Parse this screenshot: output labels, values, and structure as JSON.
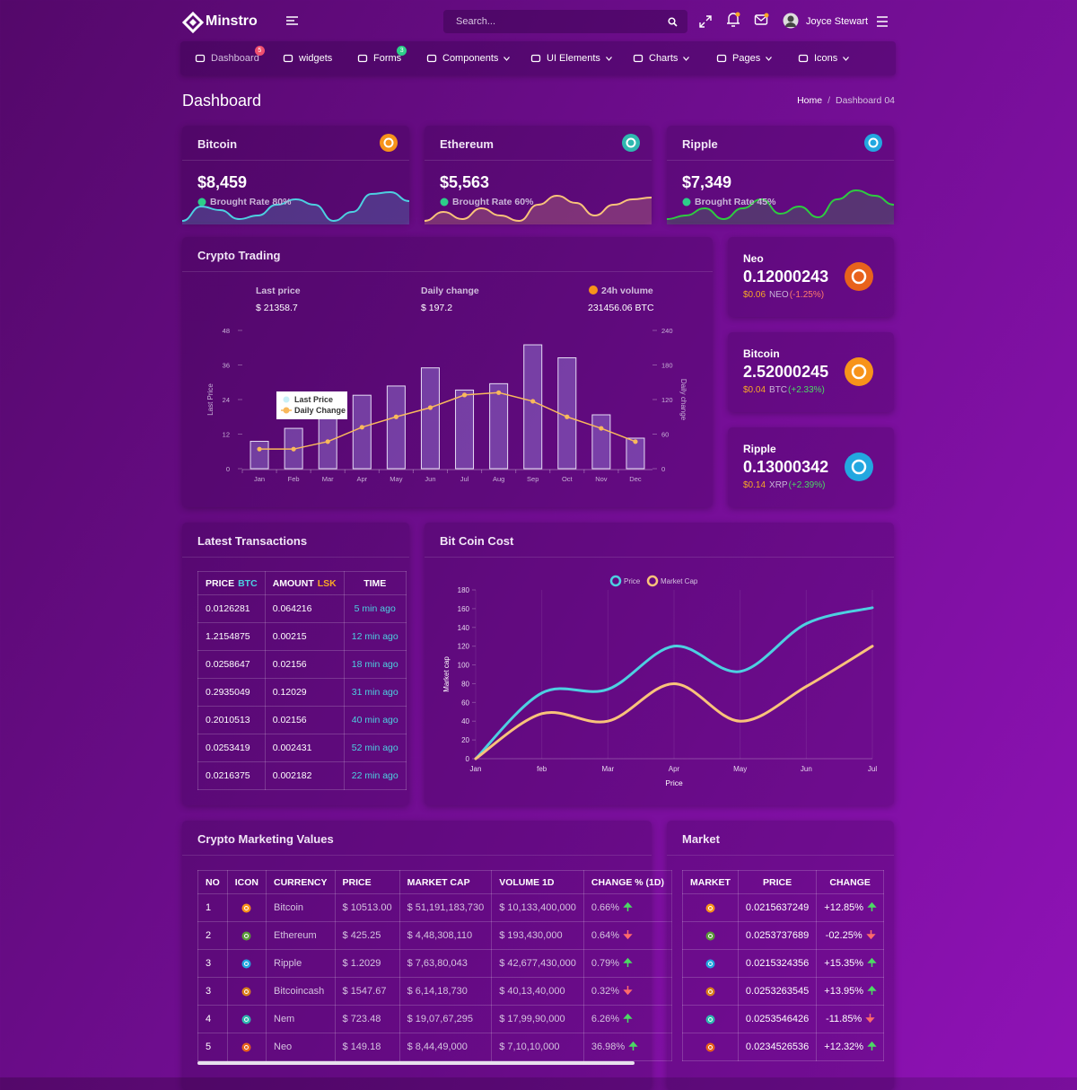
{
  "header": {
    "brand": "Minstro",
    "search_placeholder": "Search...",
    "user": "Joyce Stewart"
  },
  "nav": [
    {
      "label": "Dashboard",
      "badge": "5",
      "badge_color": "#f0506e"
    },
    {
      "label": "widgets"
    },
    {
      "label": "Forms",
      "badge": "3",
      "badge_color": "#2dce89"
    },
    {
      "label": "Components",
      "dropdown": true
    },
    {
      "label": "UI Elements",
      "dropdown": true
    },
    {
      "label": "Charts",
      "dropdown": true
    },
    {
      "label": "Pages",
      "dropdown": true
    },
    {
      "label": "Icons",
      "dropdown": true
    }
  ],
  "page_title": "Dashboard",
  "breadcrumb": [
    "Home",
    "Dashboard 04"
  ],
  "coin_cards": [
    {
      "name": "Bitcoin",
      "price": "$8,459",
      "rate": "Brought Rate 80%",
      "color": "#4dd0e1",
      "icon_color": "#f7931a"
    },
    {
      "name": "Ethereum",
      "price": "$5,563",
      "rate": "Brought Rate 60%",
      "color": "#f9c37a",
      "icon_color": "#2fb8b0"
    },
    {
      "name": "Ripple",
      "price": "$7,349",
      "rate": "Brought Rate 45%",
      "color": "#2ecc40",
      "icon_color": "#23a7e0"
    }
  ],
  "trading_stats": [
    {
      "label": "Last price",
      "value": "$ 21358.7"
    },
    {
      "label": "Daily change",
      "value": "$ 197.2"
    },
    {
      "label": "24h volume",
      "value": "231456.06 BTC"
    }
  ],
  "side_cards": [
    {
      "name": "Neo",
      "price": "0.12000243",
      "change": "$0.06",
      "symbol": "NEO",
      "pct": "(-1.25%)",
      "icon_color": "#e8621c"
    },
    {
      "name": "Bitcoin",
      "price": "2.52000245",
      "change": "$0.04",
      "symbol": "BTC",
      "pct": "(+2.33%)",
      "icon_color": "#f7931a"
    },
    {
      "name": "Ripple",
      "price": "0.13000342",
      "change": "$0.14",
      "symbol": "XRP",
      "pct": "(+2.39%)",
      "icon_color": "#23a7e0"
    }
  ],
  "chart_data": [
    {
      "type": "bar",
      "title": "Crypto Trading",
      "categories": [
        "Jan",
        "Feb",
        "Mar",
        "Apr",
        "May",
        "Jun",
        "Jul",
        "Aug",
        "Sep",
        "Oct",
        "Nov",
        "Dec"
      ],
      "series": [
        {
          "name": "Last Price",
          "color": "#9d8fe6",
          "values": [
            9.5,
            14,
            18,
            25.5,
            28.7,
            35,
            27.3,
            29.5,
            43,
            38.5,
            18.7,
            10.6
          ]
        },
        {
          "name": "Daily Change",
          "type": "line",
          "axis": "y2",
          "color": "#f9b95c",
          "values": [
            34,
            34,
            47,
            72,
            90,
            106,
            128,
            132,
            117,
            90,
            70,
            47
          ]
        }
      ],
      "ylim": [
        0,
        48
      ],
      "yticks": [
        0,
        12,
        24,
        36,
        48
      ],
      "ylabel": "Last Price",
      "y2lim": [
        0,
        240
      ],
      "y2ticks": [
        0,
        60,
        120,
        180,
        240
      ],
      "y2label": "Daily change"
    },
    {
      "type": "line",
      "title": "Bit Coin Cost",
      "categories": [
        "Jan",
        "feb",
        "Mar",
        "Apr",
        "May",
        "Jun",
        "Jul"
      ],
      "series": [
        {
          "name": "Price",
          "color": "#4dd0e1",
          "values": [
            0,
            70,
            74,
            120,
            93,
            144,
            161
          ]
        },
        {
          "name": "Market Cap",
          "color": "#f9c37a",
          "values": [
            0,
            48,
            40,
            80,
            40,
            77,
            120
          ]
        }
      ],
      "ylim": [
        0,
        180
      ],
      "yticks": [
        0,
        20,
        40,
        60,
        80,
        100,
        120,
        140,
        160,
        180
      ],
      "xlabel": "Price",
      "ylabel": "Market cap",
      "grid": true
    }
  ],
  "transactions": {
    "title": "Latest Transactions",
    "columns": [
      {
        "label": "PRICE",
        "unit": "BTC",
        "unit_color": "#4dd0e1"
      },
      {
        "label": "AMOUNT",
        "unit": "LSK",
        "unit_color": "#f9a825"
      },
      {
        "label": "TIME"
      }
    ],
    "rows": [
      [
        "0.0126281",
        "0.064216",
        "5 min ago"
      ],
      [
        "1.2154875",
        "0.00215",
        "12 min ago"
      ],
      [
        "0.0258647",
        "0.02156",
        "18 min ago"
      ],
      [
        "0.2935049",
        "0.12029",
        "31 min ago"
      ],
      [
        "0.2010513",
        "0.02156",
        "40 min ago"
      ],
      [
        "0.0253419",
        "0.002431",
        "52 min ago"
      ],
      [
        "0.0216375",
        "0.002182",
        "22 min ago"
      ]
    ]
  },
  "marketing": {
    "title": "Crypto Marketing Values",
    "columns": [
      "NO",
      "ICON",
      "CURRENCY",
      "PRICE",
      "MARKET CAP",
      "VOLUME 1D",
      "CHANGE % (1D)"
    ],
    "rows": [
      [
        "1",
        "Bitcoin",
        "$ 10513.00",
        "$ 51,191,183,730",
        "$ 10,133,400,000",
        "0.66%"
      ],
      [
        "2",
        "Ethereum",
        "$ 425.25",
        "$ 4,48,308,110",
        "$ 193,430,000",
        "0.64%"
      ],
      [
        "3",
        "Ripple",
        "$ 1.2029",
        "$ 7,63,80,043",
        "$ 42,677,430,000",
        "0.79%"
      ],
      [
        "3",
        "Bitcoincash",
        "$ 1547.67",
        "$ 6,14,18,730",
        "$ 40,13,40,000",
        "0.32%"
      ],
      [
        "4",
        "Nem",
        "$ 723.48",
        "$ 19,07,67,295",
        "$ 17,99,90,000",
        "6.26%"
      ],
      [
        "5",
        "Neo",
        "$ 149.18",
        "$ 8,44,49,000",
        "$ 7,10,10,000",
        "36.98%"
      ]
    ],
    "trends": [
      "up",
      "down",
      "up",
      "down",
      "up",
      "up"
    ],
    "icon_colors": [
      "#f7931a",
      "#5b9a3a",
      "#23a7e0",
      "#d9801c",
      "#2fb8b0",
      "#e8621c"
    ]
  },
  "market": {
    "title": "Market",
    "columns": [
      "MARKET",
      "PRICE",
      "CHANGE"
    ],
    "rows": [
      [
        "0.0215637249",
        "+12.85%"
      ],
      [
        "0.0253737689",
        "-02.25%"
      ],
      [
        "0.0215324356",
        "+15.35%"
      ],
      [
        "0.0253263545",
        "+13.95%"
      ],
      [
        "0.0253546426",
        "-11.85%"
      ],
      [
        "0.0234526536",
        "+12.32%"
      ]
    ],
    "trends": [
      "up",
      "down",
      "up",
      "up",
      "down",
      "up"
    ],
    "icon_colors": [
      "#f7931a",
      "#5b9a3a",
      "#23a7e0",
      "#d9801c",
      "#2fb8b0",
      "#e8621c"
    ]
  }
}
